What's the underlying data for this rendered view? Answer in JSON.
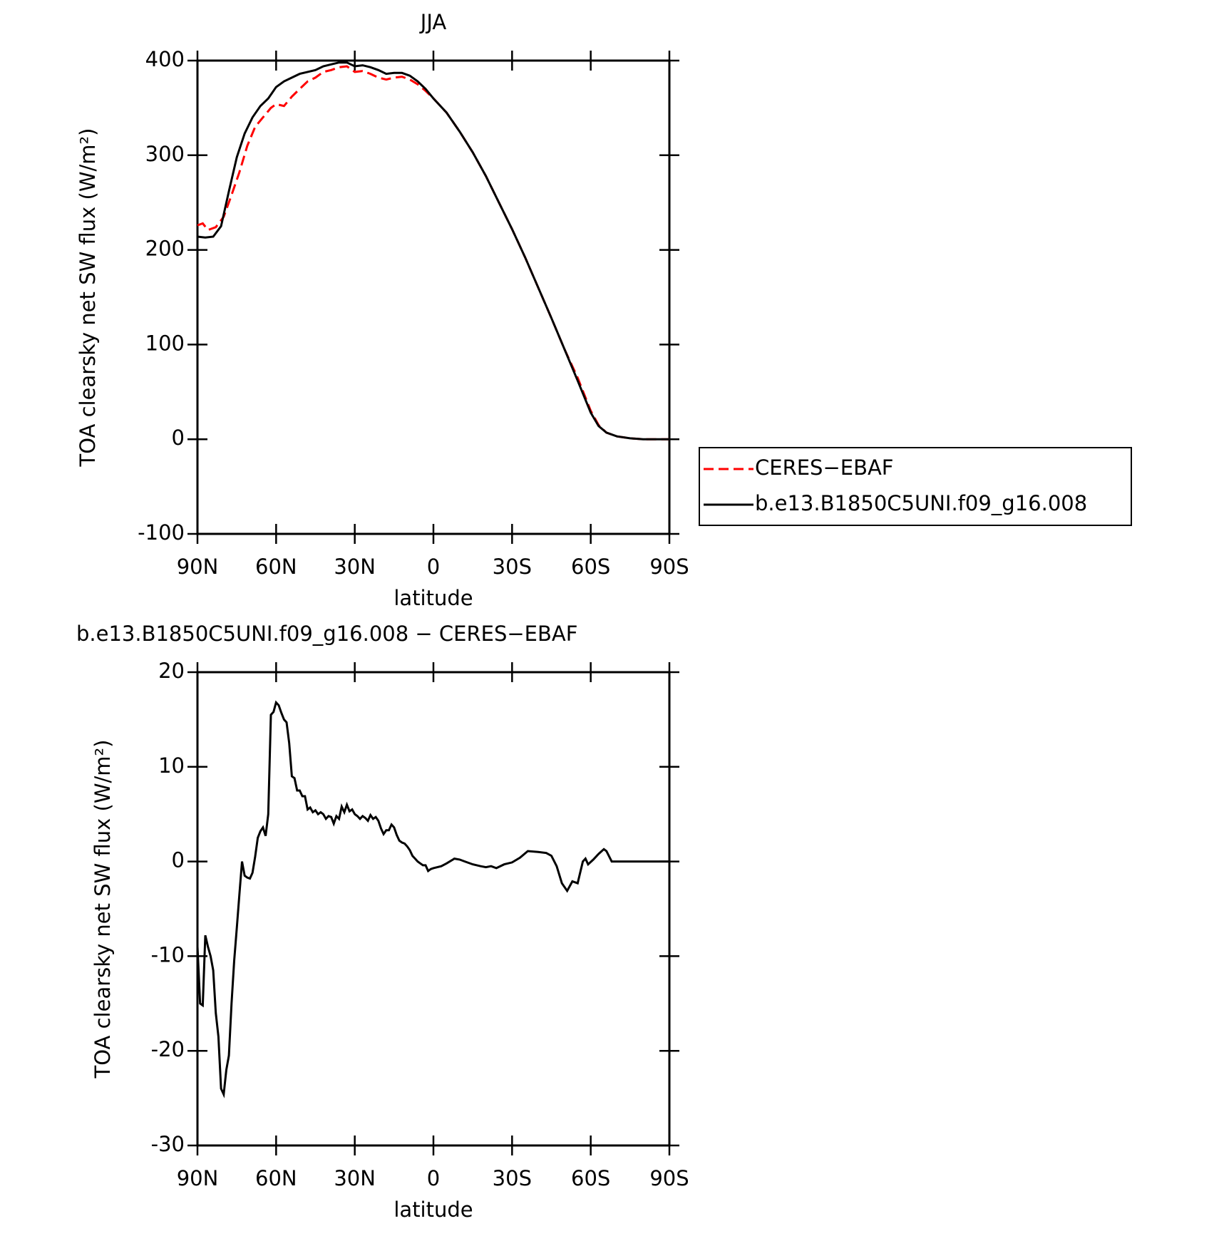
{
  "chart_data": [
    {
      "type": "line",
      "title": "JJA",
      "xlabel": "latitude",
      "ylabel": "TOA clearsky net SW flux (W/m²)",
      "xlim": [
        90,
        -90
      ],
      "ylim": [
        -100,
        400
      ],
      "xticks": [
        {
          "value": 90,
          "label": "90N"
        },
        {
          "value": 60,
          "label": "60N"
        },
        {
          "value": 30,
          "label": "30N"
        },
        0,
        {
          "value": -30,
          "label": "30S"
        },
        {
          "value": -60,
          "label": "60S"
        },
        {
          "value": -90,
          "label": "90S"
        }
      ],
      "yticks": [
        -100,
        0,
        100,
        200,
        300,
        400
      ],
      "legend": "right",
      "series": [
        {
          "name": "CERES−EBAF",
          "color": "#ff0000",
          "dashed": true,
          "x": [
            90,
            88,
            86,
            83,
            80,
            77,
            74,
            71,
            68,
            65,
            62,
            60,
            57,
            54,
            51,
            48,
            45,
            42,
            39,
            36,
            33,
            30,
            27,
            24,
            21,
            18,
            15,
            12,
            9,
            6,
            3,
            0,
            -5,
            -10,
            -15,
            -20,
            -25,
            -30,
            -35,
            -40,
            -45,
            -50,
            -55,
            -60,
            -63,
            -66,
            -70,
            -75,
            -80,
            -90
          ],
          "values": [
            226,
            228,
            221,
            224,
            235,
            258,
            282,
            310,
            330,
            340,
            350,
            354,
            352,
            362,
            370,
            378,
            382,
            388,
            390,
            393,
            394,
            388,
            389,
            386,
            382,
            380,
            382,
            383,
            380,
            375,
            368,
            360,
            345,
            325,
            303,
            278,
            250,
            222,
            192,
            160,
            128,
            95,
            65,
            30,
            15,
            7,
            3,
            1,
            0,
            0
          ]
        },
        {
          "name": "b.e13.B1850C5UNI.f09_g16.008",
          "color": "#000000",
          "dashed": false,
          "x": [
            90,
            87,
            84,
            81,
            78,
            75,
            72,
            69,
            66,
            63,
            60,
            57,
            54,
            51,
            48,
            45,
            42,
            39,
            36,
            33,
            30,
            27,
            24,
            21,
            18,
            15,
            12,
            9,
            6,
            3,
            0,
            -5,
            -10,
            -15,
            -20,
            -25,
            -30,
            -35,
            -40,
            -45,
            -50,
            -55,
            -60,
            -63,
            -66,
            -70,
            -75,
            -80,
            -90
          ],
          "values": [
            214,
            213,
            214,
            225,
            262,
            298,
            323,
            340,
            352,
            360,
            372,
            378,
            382,
            386,
            388,
            390,
            394,
            396,
            398,
            398,
            394,
            395,
            393,
            390,
            386,
            387,
            387,
            384,
            378,
            370,
            360,
            345,
            325,
            303,
            278,
            250,
            222,
            192,
            160,
            128,
            95,
            62,
            28,
            14,
            7,
            3,
            1,
            0,
            0
          ]
        }
      ]
    },
    {
      "type": "line",
      "title": "b.e13.B1850C5UNI.f09_g16.008 − CERES−EBAF",
      "xlabel": "latitude",
      "ylabel": "TOA clearsky net SW flux (W/m²)",
      "xlim": [
        90,
        -90
      ],
      "ylim": [
        -30,
        20
      ],
      "xticks": [
        {
          "value": 90,
          "label": "90N"
        },
        {
          "value": 60,
          "label": "60N"
        },
        {
          "value": 30,
          "label": "30N"
        },
        0,
        {
          "value": -30,
          "label": "30S"
        },
        {
          "value": -60,
          "label": "60S"
        },
        {
          "value": -90,
          "label": "90S"
        }
      ],
      "yticks": [
        -30,
        -20,
        -10,
        0,
        10,
        20
      ],
      "series": [
        {
          "color": "#000000",
          "dashed": false,
          "x": [
            90,
            89,
            88,
            87,
            86,
            85,
            84,
            83,
            82,
            81,
            80,
            79,
            78,
            77,
            76,
            75,
            74,
            73,
            72,
            71,
            70,
            69,
            68,
            67,
            66,
            65,
            64,
            63,
            62,
            61,
            60,
            59,
            58,
            57,
            56,
            55,
            54,
            53,
            52,
            51,
            50,
            49,
            48,
            47,
            46,
            45,
            44,
            43,
            42,
            41,
            40,
            39,
            38,
            37,
            36,
            35,
            34,
            33,
            32,
            31,
            30,
            29,
            28,
            27,
            26,
            25,
            24,
            23,
            22,
            21,
            20,
            19,
            18,
            17,
            16,
            15,
            14,
            13,
            12,
            11,
            10,
            9,
            8,
            7,
            6,
            5,
            4,
            3,
            2,
            1,
            0,
            -3,
            -5,
            -8,
            -10,
            -12,
            -15,
            -18,
            -20,
            -22,
            -24,
            -27,
            -30,
            -33,
            -36,
            -40,
            -43,
            -45,
            -47,
            -49,
            -51,
            -53,
            -55,
            -57,
            -58,
            -59,
            -61,
            -63,
            -65,
            -66,
            -68,
            -70,
            -90
          ],
          "values": [
            -9,
            -15,
            -15.2,
            -7.8,
            -9,
            -10,
            -11.5,
            -16,
            -18.5,
            -24,
            -24.6,
            -22,
            -20.5,
            -15,
            -10.5,
            -7,
            -3.5,
            0,
            -1.5,
            -1.7,
            -1.8,
            -1.2,
            0.5,
            2.5,
            3.2,
            3.6,
            2.7,
            5,
            15.5,
            15.8,
            16.8,
            16.5,
            15.7,
            15,
            14.7,
            12.5,
            9,
            8.8,
            7.5,
            7.5,
            6.9,
            6.9,
            5.5,
            5.7,
            5.2,
            5.4,
            5,
            5.2,
            5,
            4.5,
            4.8,
            4.7,
            4,
            4.8,
            4.5,
            5.8,
            5.2,
            6,
            5.3,
            5.5,
            5,
            4.8,
            4.5,
            4.8,
            4.6,
            4.3,
            4.9,
            4.5,
            4.7,
            4.3,
            3.5,
            2.9,
            3.3,
            3.3,
            3.9,
            3.6,
            2.8,
            2.2,
            2,
            1.9,
            1.6,
            1.2,
            0.6,
            0.3,
            0,
            -0.2,
            -0.4,
            -0.4,
            -1,
            -0.8,
            -0.7,
            -0.5,
            -0.2,
            0.3,
            0.2,
            0,
            -0.3,
            -0.5,
            -0.6,
            -0.5,
            -0.7,
            -0.3,
            -0.1,
            0.4,
            1.1,
            1,
            0.9,
            0.6,
            -0.5,
            -2.3,
            -3.1,
            -2.1,
            -2.3,
            0,
            0.3,
            -0.3,
            0.2,
            0.8,
            1.3,
            1.1,
            0,
            0,
            0
          ]
        }
      ]
    }
  ]
}
